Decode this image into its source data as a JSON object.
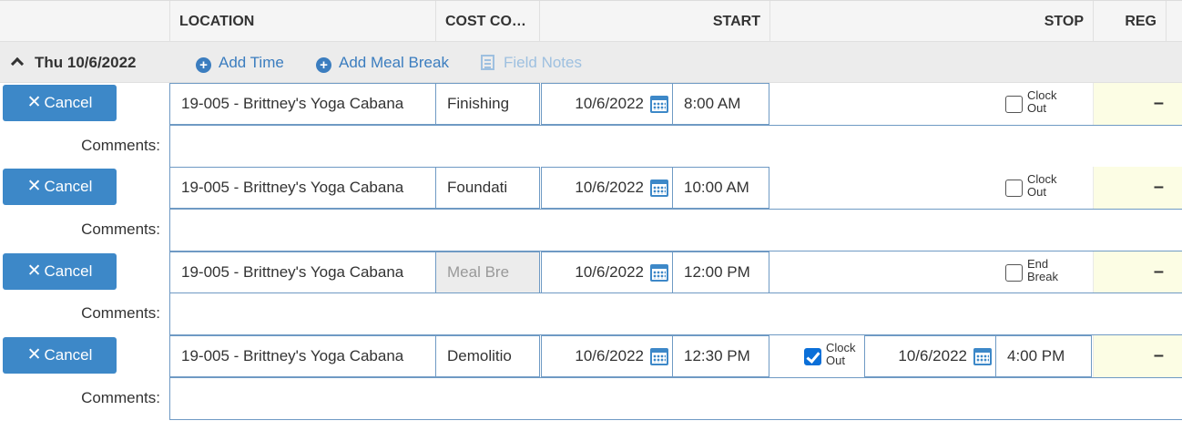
{
  "header": {
    "columns": [
      {
        "label": ""
      },
      {
        "label": "LOCATION"
      },
      {
        "label": "COST CO…"
      },
      {
        "label": "START"
      },
      {
        "label": "STOP"
      },
      {
        "label": "REG"
      }
    ]
  },
  "day": {
    "label": "Thu 10/6/2022",
    "add_time": "Add Time",
    "add_meal_break": "Add Meal Break",
    "field_notes": "Field Notes"
  },
  "entries": [
    {
      "cancel_label": "Cancel",
      "location": "19-005 - Brittney's Yoga Cabana",
      "cost_code": "Finishing",
      "cost_code_disabled": false,
      "start_date": "10/6/2022",
      "start_time": "8:00 AM",
      "stop_check_line1": "Clock",
      "stop_check_line2": "Out",
      "stop_checked": false,
      "stop_date": "",
      "stop_time": "",
      "reg": "–",
      "comments_label": "Comments:"
    },
    {
      "cancel_label": "Cancel",
      "location": "19-005 - Brittney's Yoga Cabana",
      "cost_code": "Foundati",
      "cost_code_disabled": false,
      "start_date": "10/6/2022",
      "start_time": "10:00 AM",
      "stop_check_line1": "Clock",
      "stop_check_line2": "Out",
      "stop_checked": false,
      "stop_date": "",
      "stop_time": "",
      "reg": "–",
      "comments_label": "Comments:"
    },
    {
      "cancel_label": "Cancel",
      "location": "19-005 - Brittney's Yoga Cabana",
      "cost_code": "Meal Bre",
      "cost_code_disabled": true,
      "start_date": "10/6/2022",
      "start_time": "12:00 PM",
      "stop_check_line1": "End",
      "stop_check_line2": "Break",
      "stop_checked": false,
      "stop_date": "",
      "stop_time": "",
      "reg": "–",
      "comments_label": "Comments:"
    },
    {
      "cancel_label": "Cancel",
      "location": "19-005 - Brittney's Yoga Cabana",
      "cost_code": "Demolitio",
      "cost_code_disabled": false,
      "start_date": "10/6/2022",
      "start_time": "12:30 PM",
      "stop_check_line1": "Clock",
      "stop_check_line2": "Out",
      "stop_checked": true,
      "stop_date": "10/6/2022",
      "stop_time": "4:00 PM",
      "reg": "–",
      "comments_label": "Comments:"
    }
  ],
  "colors": {
    "accent": "#3d88c8",
    "link": "#3b7dbf",
    "reg_bg": "#fcfde4",
    "checkbox_checked": "#0b6fd8"
  }
}
